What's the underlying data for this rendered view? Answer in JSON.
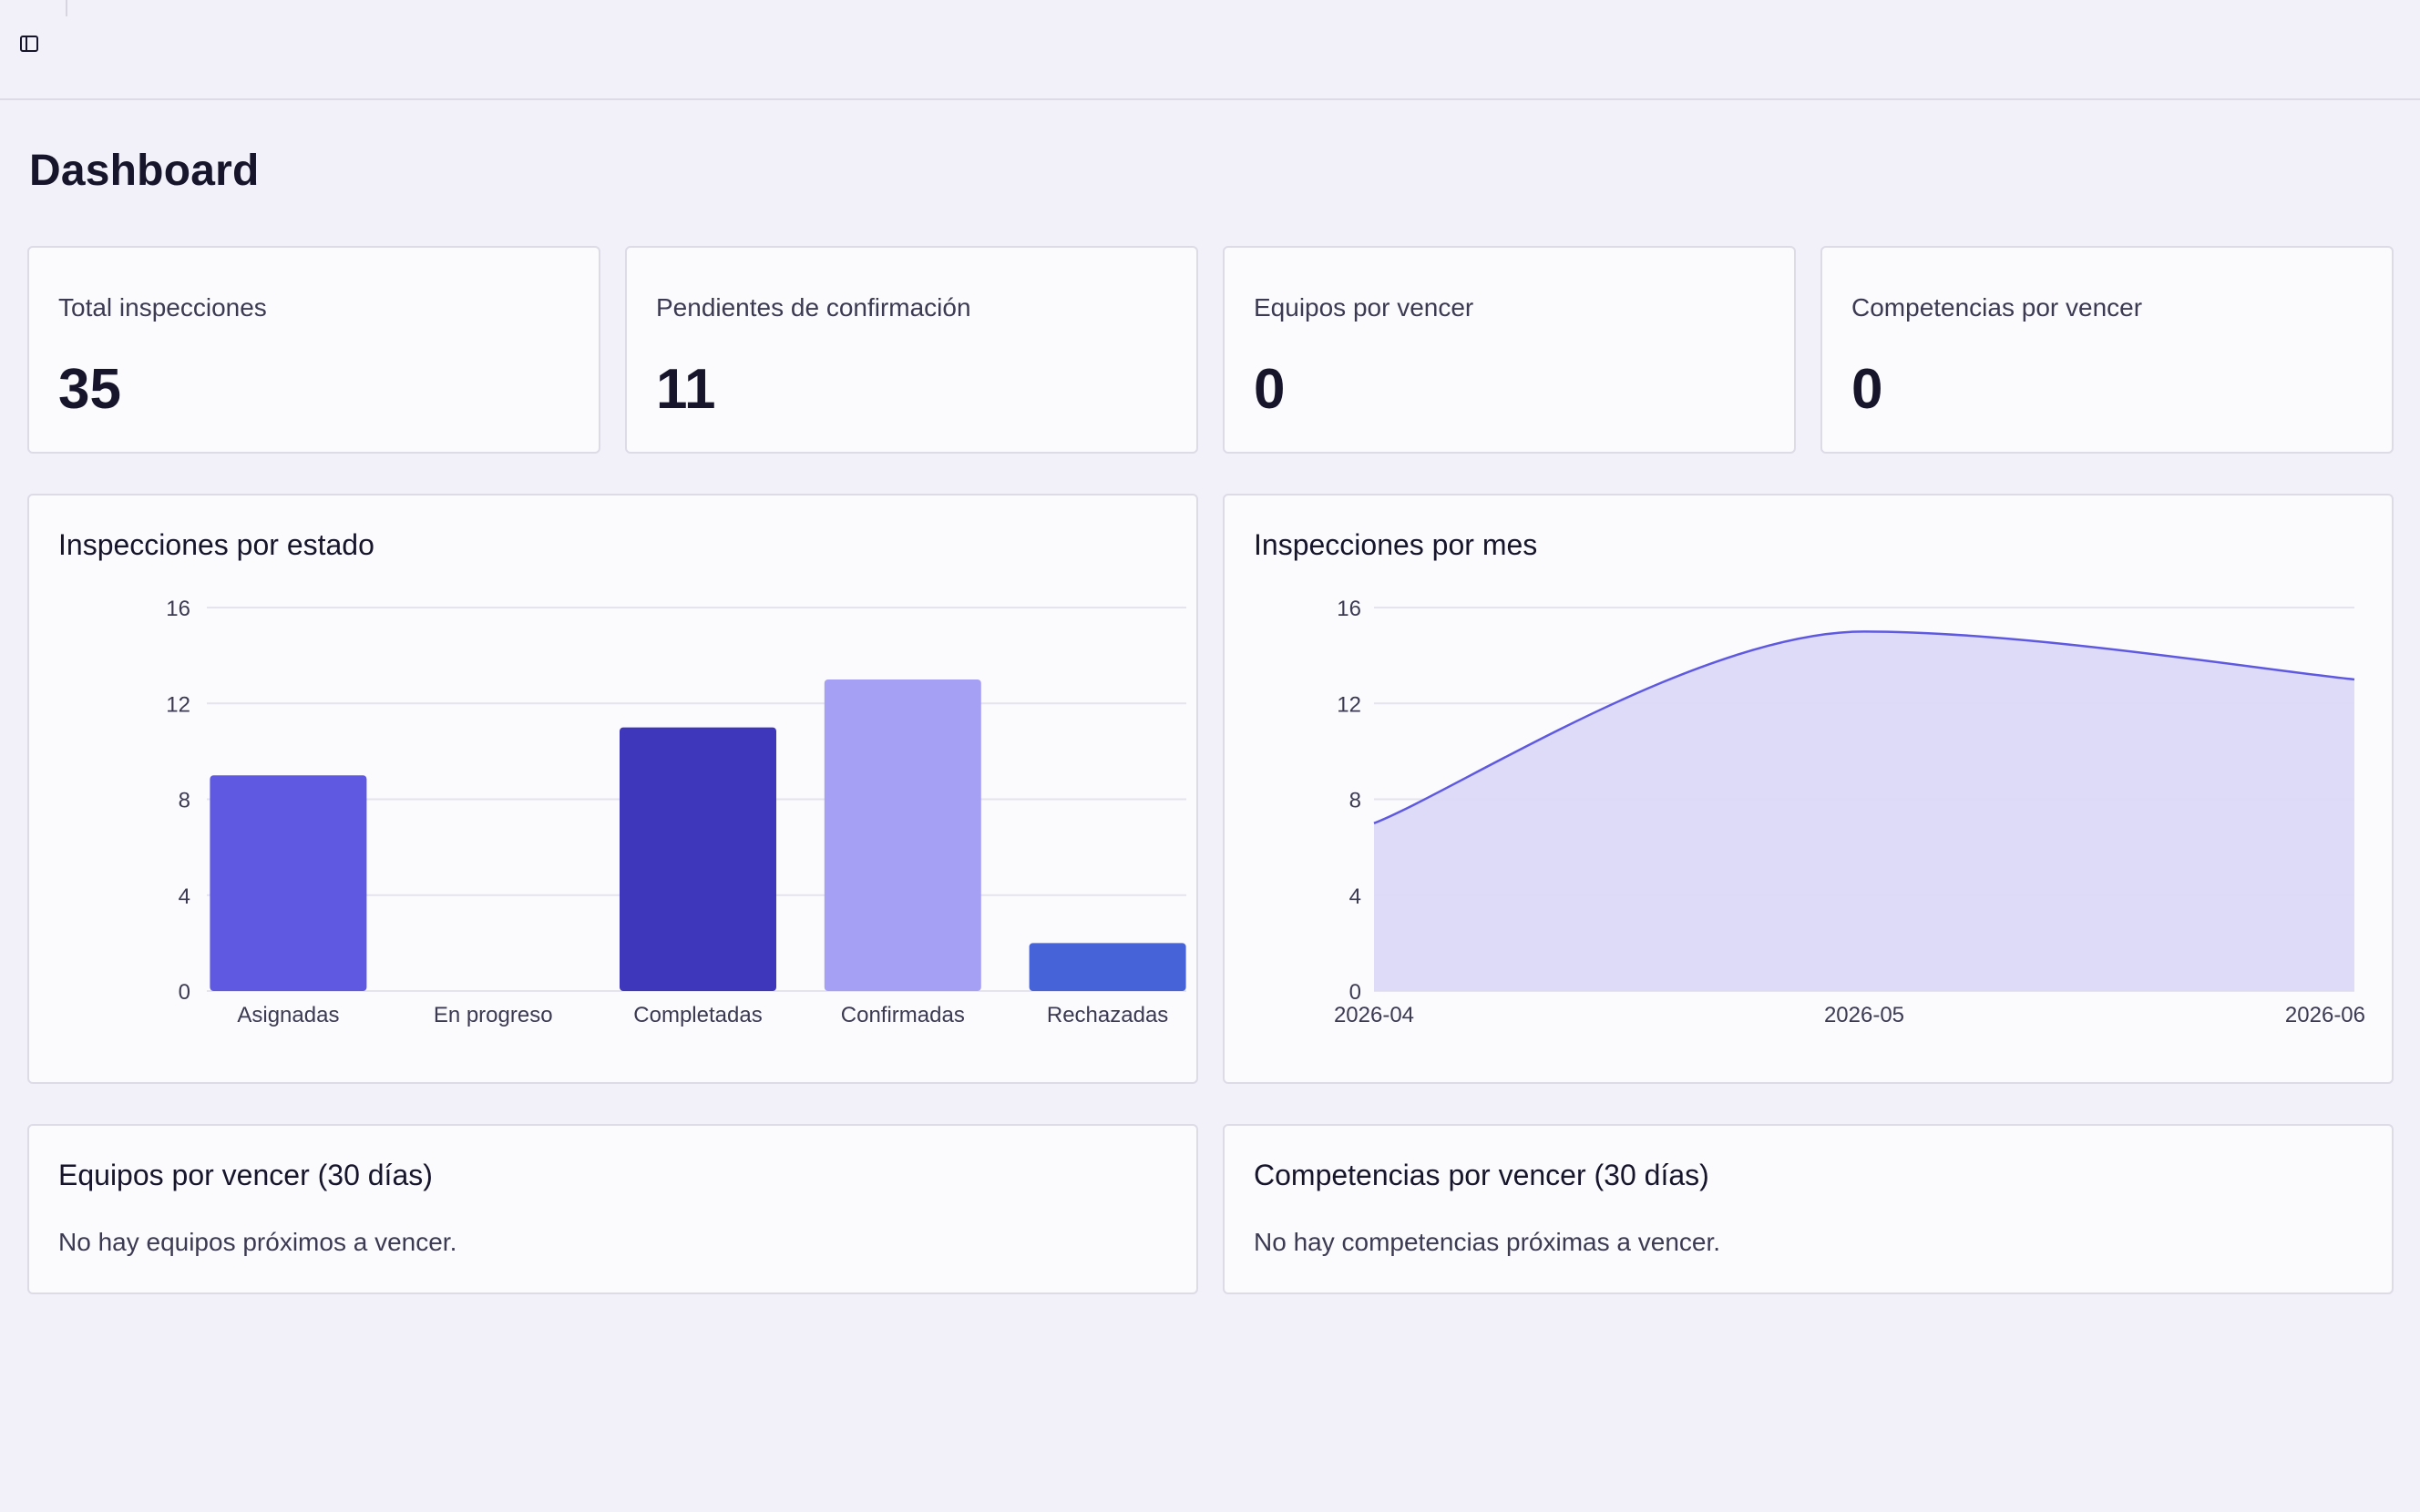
{
  "header": {
    "sidebar_toggle_icon": "sidebar-toggle-icon"
  },
  "page": {
    "title": "Dashboard"
  },
  "stats": [
    {
      "label": "Total inspecciones",
      "value": "35"
    },
    {
      "label": "Pendientes de confirmación",
      "value": "11"
    },
    {
      "label": "Equipos por vencer",
      "value": "0"
    },
    {
      "label": "Competencias por vencer",
      "value": "0"
    }
  ],
  "status_chart": {
    "title": "Inspecciones por estado"
  },
  "month_chart": {
    "title": "Inspecciones por mes"
  },
  "equipos_panel": {
    "title": "Equipos por vencer (30 días)",
    "empty_message": "No hay equipos próximos a vencer."
  },
  "competencias_panel": {
    "title": "Competencias por vencer (30 días)",
    "empty_message": "No hay competencias próximas a vencer."
  },
  "chart_data": [
    {
      "type": "bar",
      "title": "Inspecciones por estado",
      "categories": [
        "Asignadas",
        "En progreso",
        "Completadas",
        "Confirmadas",
        "Rechazadas"
      ],
      "values": [
        9,
        0,
        11,
        13,
        2
      ],
      "colors": [
        "#5e59e0",
        "#5e59e0",
        "#3f37bb",
        "#a6a0f5",
        "#4763d8"
      ],
      "yticks": [
        0,
        4,
        8,
        12,
        16
      ],
      "ylim": [
        0,
        16
      ],
      "grid": true
    },
    {
      "type": "area",
      "title": "Inspecciones por mes",
      "x": [
        "2026-04",
        "2026-05",
        "2026-06"
      ],
      "values": [
        7,
        15,
        13
      ],
      "line_color": "#5e59e0",
      "fill_color": "#dbd9f7",
      "yticks": [
        0,
        4,
        8,
        12,
        16
      ],
      "ylim": [
        0,
        16
      ],
      "grid": true
    }
  ]
}
